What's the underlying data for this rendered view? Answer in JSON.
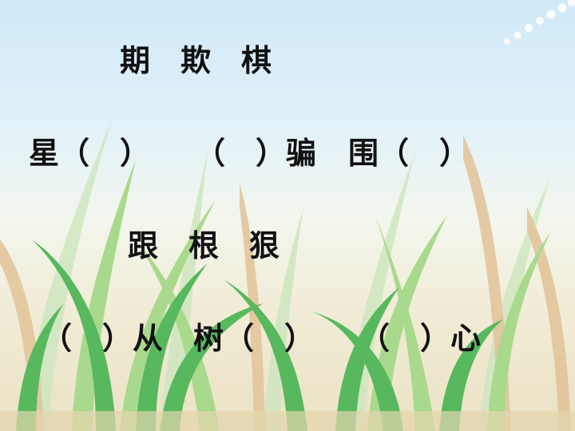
{
  "slide": {
    "row1": "期　欺　棋",
    "row2a": "星（　）",
    "row2b": "（　）骗",
    "row2c": "围（　）",
    "row3": "跟　根　狠",
    "row4a": "（　）从",
    "row4b": "树（　）",
    "row4c": "（　）心"
  },
  "colors": {
    "sky_top": "#cfe9f7",
    "ground": "#ebe2c4",
    "grass_dark": "#58b85e",
    "grass_light": "#a9d98c",
    "grass_dry": "#d9b88a",
    "text": "#111111"
  }
}
